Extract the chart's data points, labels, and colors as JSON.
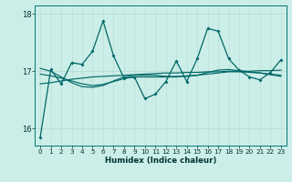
{
  "xlabel": "Humidex (Indice chaleur)",
  "bg_color": "#cceee8",
  "line_color": "#006868",
  "ylim": [
    15.7,
    18.15
  ],
  "xlim": [
    -0.5,
    23.5
  ],
  "yticks": [
    16,
    17,
    18
  ],
  "xticks": [
    0,
    1,
    2,
    3,
    4,
    5,
    6,
    7,
    8,
    9,
    10,
    11,
    12,
    13,
    14,
    15,
    16,
    17,
    18,
    19,
    20,
    21,
    22,
    23
  ],
  "main_y": [
    15.85,
    17.03,
    16.78,
    17.15,
    17.12,
    17.35,
    17.88,
    17.27,
    16.88,
    16.9,
    16.52,
    16.6,
    16.82,
    17.18,
    16.82,
    17.22,
    17.75,
    17.7,
    17.22,
    17.02,
    16.9,
    16.85,
    16.98,
    17.2
  ],
  "smooth1_y": [
    16.95,
    16.92,
    16.88,
    16.83,
    16.78,
    16.75,
    16.77,
    16.82,
    16.87,
    16.9,
    16.9,
    16.9,
    16.9,
    16.9,
    16.92,
    16.93,
    16.95,
    16.97,
    16.99,
    16.99,
    16.98,
    16.97,
    16.95,
    16.93
  ],
  "smooth2_y": [
    17.05,
    17.0,
    16.9,
    16.8,
    16.73,
    16.72,
    16.75,
    16.83,
    16.9,
    16.93,
    16.93,
    16.93,
    16.91,
    16.91,
    16.91,
    16.93,
    16.98,
    17.02,
    17.03,
    17.01,
    16.99,
    16.97,
    16.94,
    16.91
  ],
  "linear_y": [
    16.78,
    16.8,
    16.83,
    16.86,
    16.88,
    16.9,
    16.91,
    16.92,
    16.93,
    16.94,
    16.95,
    16.96,
    16.97,
    16.97,
    16.98,
    16.98,
    16.99,
    16.99,
    17.0,
    17.0,
    17.0,
    17.01,
    17.01,
    17.02
  ],
  "vgrid_color": "#bbddd8",
  "hgrid_color": "#bbddd8"
}
